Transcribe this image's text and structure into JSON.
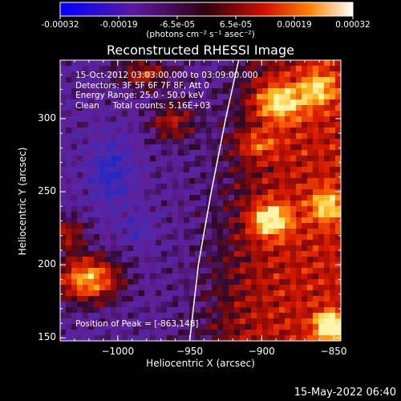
{
  "colorbar": {
    "ticks": [
      "-0.00032",
      "-0.00019",
      "-6.5e-05",
      "6.5e-05",
      "0.00019",
      "0.00032"
    ],
    "units_label": "(photons cm⁻² s⁻¹ asec⁻²)"
  },
  "chart_data": {
    "type": "heatmap",
    "title": "Reconstructed RHESSI Image",
    "xlabel": "Heliocentric X (arcsec)",
    "ylabel": "Heliocentric Y (arcsec)",
    "xlim": [
      -1040,
      -845
    ],
    "ylim": [
      148,
      340
    ],
    "xticks": [
      -1000,
      -950,
      -900,
      -850
    ],
    "yticks": [
      150,
      200,
      250,
      300
    ],
    "xtick_labels": [
      "−1000",
      "−950",
      "−900",
      "−850"
    ],
    "ytick_labels": [
      "150",
      "200",
      "250",
      "300"
    ],
    "colorscale_range": [
      -0.00032,
      0.00032
    ],
    "limb_curve": [
      [
        -950,
        148
      ],
      [
        -944,
        200
      ],
      [
        -935,
        250
      ],
      [
        -925,
        300
      ],
      [
        -916,
        340
      ]
    ],
    "annotations": [
      "15-Oct-2012 03:03:00.000 to 03:09:00.000",
      "Detectors: 3F 5F 6F 7F 8F, Att 0",
      "Energy Range: 25.0 - 50.0 keV",
      "Clean     Total counts: 5.16E+03"
    ],
    "peak_label": "Position of Peak = [-863,148]",
    "peak": [
      -863,
      148
    ]
  },
  "footer_date": "15-May-2022 06:40"
}
